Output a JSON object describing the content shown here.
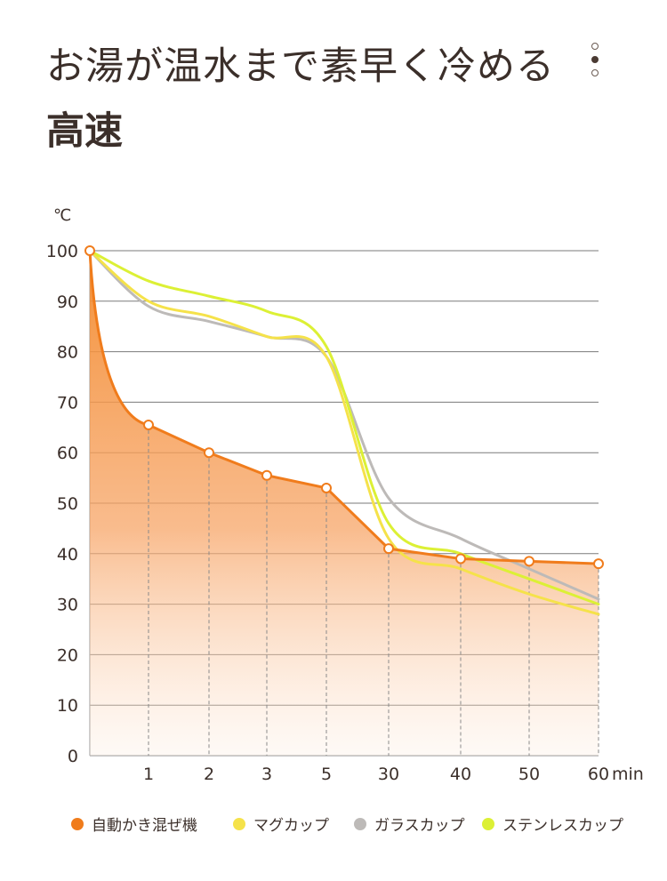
{
  "header": {
    "title": "お湯が温水まで素早く冷める",
    "subtitle": "高速"
  },
  "chart_data": {
    "type": "line",
    "ylabel": "℃",
    "xunit": "min",
    "ylim": [
      0,
      100
    ],
    "yticks": [
      0,
      10,
      20,
      30,
      40,
      50,
      60,
      70,
      80,
      90,
      100
    ],
    "categories": [
      "0",
      "1",
      "2",
      "3",
      "5",
      "30",
      "40",
      "50",
      "60"
    ],
    "xtick_labels": [
      "1",
      "2",
      "3",
      "5",
      "30",
      "40",
      "50",
      "60"
    ],
    "grid": true,
    "legend_position": "bottom",
    "series": [
      {
        "name": "自動かき混ぜ機",
        "color": "#f07c1c",
        "style": "area",
        "markers": true,
        "values": [
          100,
          65.5,
          60,
          55.5,
          53,
          41,
          39,
          38.5,
          38
        ]
      },
      {
        "name": "マグカップ",
        "color": "#f5e24a",
        "style": "line",
        "markers": false,
        "values": [
          100,
          90,
          87,
          83,
          79,
          43,
          37,
          32,
          28
        ]
      },
      {
        "name": "ガラスカップ",
        "color": "#bdbab8",
        "style": "line",
        "markers": false,
        "values": [
          100,
          89,
          86,
          83,
          79,
          51,
          43,
          37,
          31
        ]
      },
      {
        "name": "ステンレスカップ",
        "color": "#dcf035",
        "style": "line",
        "markers": false,
        "values": [
          100,
          94,
          91,
          88,
          81,
          46,
          40,
          35,
          30
        ]
      }
    ]
  }
}
